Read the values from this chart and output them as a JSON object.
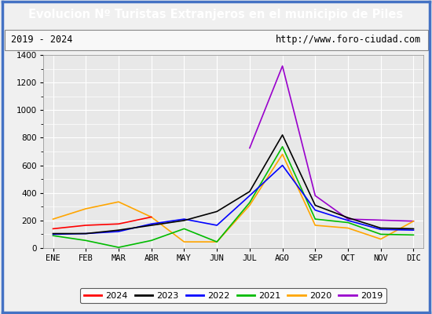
{
  "title": "Evolucion Nº Turistas Extranjeros en el municipio de Piles",
  "subtitle_left": "2019 - 2024",
  "subtitle_right": "http://www.foro-ciudad.com",
  "months": [
    "ENE",
    "FEB",
    "MAR",
    "ABR",
    "MAY",
    "JUN",
    "JUL",
    "AGO",
    "SEP",
    "OCT",
    "NOV",
    "DIC"
  ],
  "series": {
    "2024": {
      "color": "#ff0000",
      "data": [
        140,
        165,
        175,
        225,
        null,
        null,
        null,
        null,
        null,
        null,
        null,
        null
      ]
    },
    "2023": {
      "color": "#000000",
      "data": [
        105,
        105,
        130,
        165,
        200,
        265,
        410,
        820,
        310,
        220,
        145,
        140
      ]
    },
    "2022": {
      "color": "#0000ff",
      "data": [
        100,
        105,
        120,
        175,
        210,
        165,
        380,
        600,
        275,
        200,
        135,
        130
      ]
    },
    "2021": {
      "color": "#00bb00",
      "data": [
        90,
        55,
        5,
        55,
        140,
        45,
        330,
        735,
        210,
        185,
        100,
        95
      ]
    },
    "2020": {
      "color": "#ffa500",
      "data": [
        210,
        285,
        335,
        225,
        45,
        45,
        310,
        680,
        165,
        145,
        65,
        195
      ]
    },
    "2019": {
      "color": "#9900cc",
      "data": [
        null,
        null,
        null,
        null,
        null,
        null,
        725,
        1320,
        380,
        210,
        null,
        195
      ]
    }
  },
  "ylim": [
    0,
    1400
  ],
  "yticks": [
    0,
    200,
    400,
    600,
    800,
    1000,
    1200,
    1400
  ],
  "title_bg_color": "#4472c4",
  "title_font_color": "#ffffff",
  "plot_bg_color": "#e8e8e8",
  "outer_bg_color": "#f0f0f0",
  "grid_color": "#ffffff",
  "border_color": "#4472c4",
  "legend_order": [
    "2024",
    "2023",
    "2022",
    "2021",
    "2020",
    "2019"
  ]
}
